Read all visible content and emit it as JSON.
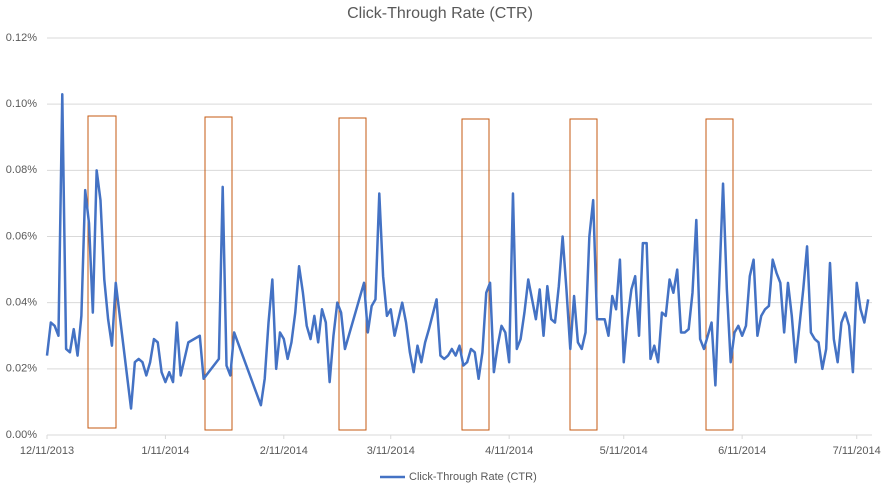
{
  "chart_data": {
    "type": "line",
    "title": "Click-Through Rate (CTR)",
    "x": [
      "12/11/2013",
      "12/12/2013",
      "12/13/2013",
      "12/14/2013",
      "12/15/2013",
      "12/16/2013",
      "12/17/2013",
      "12/18/2013",
      "12/19/2013",
      "12/20/2013",
      "12/21/2013",
      "12/22/2013",
      "12/23/2013",
      "12/24/2013",
      "12/25/2013",
      "12/26/2013",
      "12/27/2013",
      "12/28/2013",
      "12/29/2013",
      "12/31/2013",
      "1/2/2014",
      "1/3/2014",
      "1/4/2014",
      "1/5/2014",
      "1/6/2014",
      "1/7/2014",
      "1/8/2014",
      "1/9/2014",
      "1/10/2014",
      "1/11/2014",
      "1/12/2014",
      "1/13/2014",
      "1/14/2014",
      "1/15/2014",
      "1/17/2014",
      "1/20/2014",
      "1/21/2014",
      "1/25/2014",
      "1/26/2014",
      "1/27/2014",
      "1/28/2014",
      "1/29/2014",
      "2/5/2014",
      "2/6/2014",
      "2/7/2014",
      "2/8/2014",
      "2/9/2014",
      "2/10/2014",
      "2/11/2014",
      "2/12/2014",
      "2/13/2014",
      "2/14/2014",
      "2/15/2014",
      "2/16/2014",
      "2/17/2014",
      "2/18/2014",
      "2/19/2014",
      "2/20/2014",
      "2/21/2014",
      "2/22/2014",
      "2/23/2014",
      "2/24/2014",
      "2/25/2014",
      "2/26/2014",
      "2/27/2014",
      "3/4/2014",
      "3/5/2014",
      "3/6/2014",
      "3/7/2014",
      "3/8/2014",
      "3/9/2014",
      "3/10/2014",
      "3/11/2014",
      "3/12/2014",
      "3/14/2014",
      "3/15/2014",
      "3/16/2014",
      "3/17/2014",
      "3/18/2014",
      "3/19/2014",
      "3/20/2014",
      "3/21/2014",
      "3/23/2014",
      "3/24/2014",
      "3/25/2014",
      "3/26/2014",
      "3/27/2014",
      "3/28/2014",
      "3/29/2014",
      "3/30/2014",
      "3/31/2014",
      "4/1/2014",
      "4/2/2014",
      "4/3/2014",
      "4/4/2014",
      "4/5/2014",
      "4/6/2014",
      "4/7/2014",
      "4/8/2014",
      "4/9/2014",
      "4/10/2014",
      "4/11/2014",
      "4/12/2014",
      "4/13/2014",
      "4/14/2014",
      "4/15/2014",
      "4/16/2014",
      "4/17/2014",
      "4/18/2014",
      "4/19/2014",
      "4/20/2014",
      "4/21/2014",
      "4/22/2014",
      "4/23/2014",
      "4/24/2014",
      "4/25/2014",
      "4/26/2014",
      "4/27/2014",
      "4/28/2014",
      "4/29/2014",
      "4/30/2014",
      "5/1/2014",
      "5/2/2014",
      "5/3/2014",
      "5/4/2014",
      "5/5/2014",
      "5/6/2014",
      "5/7/2014",
      "5/8/2014",
      "5/9/2014",
      "5/10/2014",
      "5/11/2014",
      "5/12/2014",
      "5/13/2014",
      "5/14/2014",
      "5/15/2014",
      "5/16/2014",
      "5/17/2014",
      "5/18/2014",
      "5/19/2014",
      "5/20/2014",
      "5/21/2014",
      "5/22/2014",
      "5/23/2014",
      "5/24/2014",
      "5/25/2014",
      "5/26/2014",
      "5/27/2014",
      "5/28/2014",
      "5/29/2014",
      "5/30/2014",
      "5/31/2014",
      "6/1/2014",
      "6/2/2014",
      "6/3/2014",
      "6/4/2014",
      "6/6/2014",
      "6/7/2014",
      "6/8/2014",
      "6/9/2014",
      "6/10/2014",
      "6/11/2014",
      "6/12/2014",
      "6/13/2014",
      "6/14/2014",
      "6/15/2014",
      "6/16/2014",
      "6/17/2014",
      "6/18/2014",
      "6/19/2014",
      "6/20/2014",
      "6/21/2014",
      "6/22/2014",
      "6/23/2014",
      "6/24/2014",
      "6/25/2014",
      "6/27/2014",
      "6/28/2014",
      "6/29/2014",
      "6/30/2014",
      "7/1/2014",
      "7/2/2014",
      "7/3/2014",
      "7/4/2014",
      "7/5/2014",
      "7/6/2014",
      "7/7/2014",
      "7/8/2014",
      "7/9/2014",
      "7/10/2014",
      "7/11/2014",
      "7/12/2014",
      "7/13/2014",
      "7/14/2014"
    ],
    "series": [
      {
        "name": "Click-Through Rate (CTR)",
        "color": "#4472c4",
        "values": [
          0.024,
          0.034,
          0.033,
          0.03,
          0.103,
          0.026,
          0.025,
          0.032,
          0.024,
          0.036,
          0.074,
          0.064,
          0.037,
          0.08,
          0.071,
          0.047,
          0.035,
          0.027,
          0.046,
          0.027,
          0.008,
          0.022,
          0.023,
          0.022,
          0.018,
          0.022,
          0.029,
          0.028,
          0.019,
          0.016,
          0.019,
          0.016,
          0.034,
          0.018,
          0.028,
          0.03,
          0.017,
          0.023,
          0.075,
          0.021,
          0.018,
          0.031,
          0.009,
          0.017,
          0.034,
          0.047,
          0.02,
          0.031,
          0.029,
          0.023,
          0.028,
          0.037,
          0.051,
          0.043,
          0.033,
          0.029,
          0.036,
          0.028,
          0.038,
          0.034,
          0.016,
          0.03,
          0.04,
          0.037,
          0.026,
          0.046,
          0.031,
          0.039,
          0.041,
          0.073,
          0.048,
          0.036,
          0.038,
          0.03,
          0.04,
          0.034,
          0.025,
          0.019,
          0.027,
          0.022,
          0.028,
          0.032,
          0.041,
          0.024,
          0.023,
          0.024,
          0.026,
          0.024,
          0.027,
          0.021,
          0.022,
          0.026,
          0.025,
          0.017,
          0.025,
          0.043,
          0.046,
          0.019,
          0.027,
          0.033,
          0.031,
          0.022,
          0.073,
          0.026,
          0.029,
          0.037,
          0.047,
          0.041,
          0.035,
          0.044,
          0.03,
          0.045,
          0.035,
          0.034,
          0.045,
          0.06,
          0.044,
          0.026,
          0.042,
          0.028,
          0.026,
          0.031,
          0.06,
          0.071,
          0.035,
          0.035,
          0.035,
          0.03,
          0.042,
          0.038,
          0.053,
          0.022,
          0.035,
          0.044,
          0.048,
          0.03,
          0.058,
          0.058,
          0.023,
          0.027,
          0.022,
          0.037,
          0.036,
          0.047,
          0.043,
          0.05,
          0.031,
          0.031,
          0.032,
          0.043,
          0.065,
          0.029,
          0.026,
          0.03,
          0.034,
          0.015,
          0.076,
          0.044,
          0.022,
          0.031,
          0.033,
          0.03,
          0.033,
          0.048,
          0.053,
          0.03,
          0.036,
          0.038,
          0.039,
          0.053,
          0.049,
          0.046,
          0.031,
          0.046,
          0.036,
          0.022,
          0.044,
          0.057,
          0.031,
          0.029,
          0.028,
          0.02,
          0.026,
          0.052,
          0.029,
          0.022,
          0.034,
          0.037,
          0.033,
          0.019,
          0.046,
          0.038,
          0.034,
          0.041
        ]
      }
    ],
    "xlim": [
      "12/11/2013",
      "7/15/2014"
    ],
    "xticks": [
      "12/11/2013",
      "1/11/2014",
      "2/11/2014",
      "3/11/2014",
      "4/11/2014",
      "5/11/2014",
      "6/11/2014",
      "7/11/2014"
    ],
    "ylim": [
      0,
      0.12
    ],
    "yticks": [
      {
        "value": 0,
        "label": "0.00%"
      },
      {
        "value": 0.02,
        "label": "0.02%"
      },
      {
        "value": 0.04,
        "label": "0.04%"
      },
      {
        "value": 0.06,
        "label": "0.06%"
      },
      {
        "value": 0.08,
        "label": "0.08%"
      },
      {
        "value": 0.1,
        "label": "0.10%"
      },
      {
        "value": 0.12,
        "label": "0.12%"
      }
    ],
    "grid": true,
    "legend": "bottom"
  }
}
